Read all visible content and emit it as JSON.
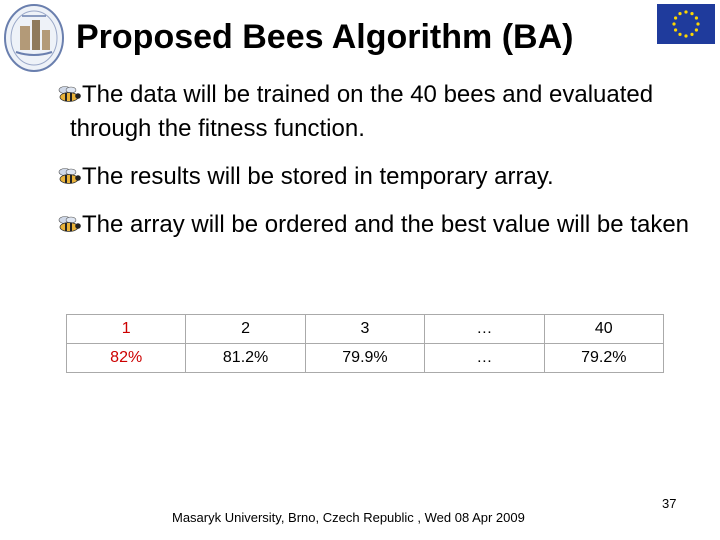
{
  "title": "Proposed Bees Algorithm (BA)",
  "bullets": [
    "The data will be trained on the 40 bees and evaluated through the fitness function.",
    "The results will be stored in temporary array.",
    "The array will be ordered and the best value will be taken"
  ],
  "table": {
    "header": [
      "1",
      "2",
      "3",
      "…",
      "40"
    ],
    "values": [
      "82%",
      "81.2%",
      "79.9%",
      "…",
      "79.2%"
    ]
  },
  "footer": "Masaryk University, Brno, Czech Republic , Wed 08 Apr 2009",
  "page_number": "37",
  "icons": {
    "bullet": "bee-icon",
    "logo": "university-logo-icon",
    "flag": "eu-flag-icon"
  },
  "colors": {
    "highlight": "#cc0000",
    "eu_blue": "#1f3b9c",
    "eu_star": "#ffd700"
  }
}
